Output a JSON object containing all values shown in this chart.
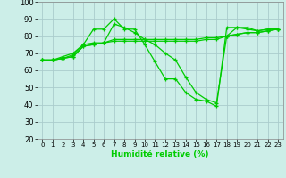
{
  "xlabel": "Humidité relative (%)",
  "background_color": "#cceee8",
  "grid_color": "#aacccc",
  "line_color": "#00cc00",
  "xlim": [
    -0.5,
    23.5
  ],
  "ylim": [
    20,
    100
  ],
  "yticks": [
    20,
    30,
    40,
    50,
    60,
    70,
    80,
    90,
    100
  ],
  "xticks": [
    0,
    1,
    2,
    3,
    4,
    5,
    6,
    7,
    8,
    9,
    10,
    11,
    12,
    13,
    14,
    15,
    16,
    17,
    18,
    19,
    20,
    21,
    22,
    23
  ],
  "series": [
    [
      66,
      66,
      68,
      70,
      75,
      84,
      84,
      90,
      84,
      84,
      75,
      65,
      55,
      55,
      47,
      43,
      42,
      39,
      85,
      85,
      84,
      83,
      84,
      84
    ],
    [
      66,
      66,
      67,
      69,
      75,
      76,
      76,
      87,
      85,
      82,
      78,
      75,
      70,
      66,
      56,
      47,
      43,
      41,
      80,
      85,
      85,
      83,
      84,
      84
    ],
    [
      66,
      66,
      67,
      68,
      74,
      75,
      76,
      78,
      78,
      78,
      78,
      78,
      78,
      78,
      78,
      78,
      79,
      79,
      80,
      81,
      82,
      82,
      83,
      84
    ],
    [
      66,
      66,
      67,
      68,
      74,
      75,
      76,
      77,
      77,
      77,
      77,
      77,
      77,
      77,
      77,
      77,
      78,
      78,
      80,
      81,
      82,
      82,
      83,
      84
    ]
  ]
}
